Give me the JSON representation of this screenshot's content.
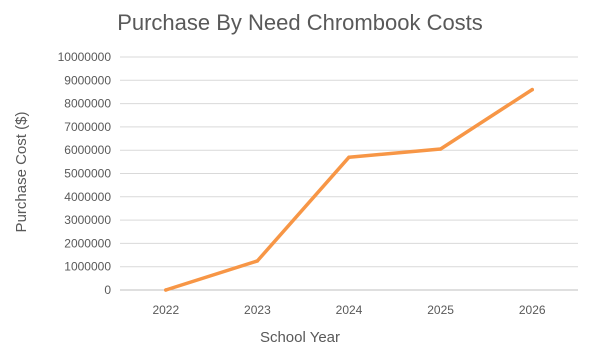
{
  "chart_data": {
    "type": "line",
    "title": "Purchase By Need Chrombook Costs",
    "xlabel": "School Year",
    "ylabel": "Purchase Cost ($)",
    "categories": [
      "2022",
      "2023",
      "2024",
      "2025",
      "2026"
    ],
    "series": [
      {
        "values": [
          0,
          1250000,
          5700000,
          6050000,
          8600000
        ]
      }
    ],
    "ylim": [
      0,
      10000000
    ],
    "yticks": [
      0,
      1000000,
      2000000,
      3000000,
      4000000,
      5000000,
      6000000,
      7000000,
      8000000,
      9000000,
      10000000
    ],
    "grid": true,
    "legend": "none",
    "colors": {
      "line": "#f79646",
      "grid": "#d9d9d9",
      "text": "#595959"
    }
  }
}
